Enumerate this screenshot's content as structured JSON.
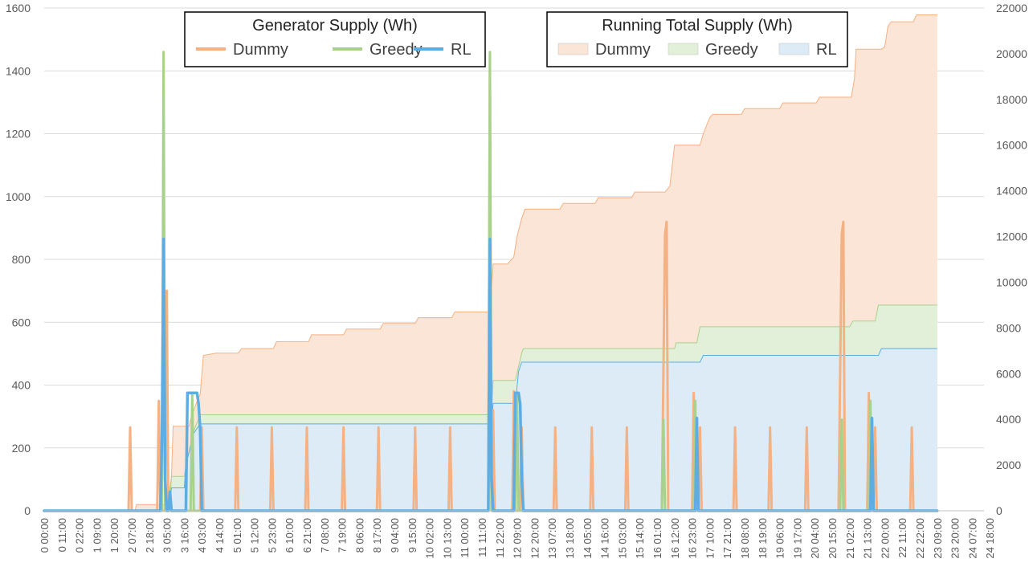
{
  "chart_data": {
    "type": "line",
    "x_tick_labels": [
      "0 00:00",
      "0 11:00",
      "0 22:00",
      "1 09:00",
      "1 20:00",
      "2 07:00",
      "2 18:00",
      "3 05:00",
      "3 16:00",
      "4 03:00",
      "4 14:00",
      "5 01:00",
      "5 12:00",
      "5 23:00",
      "6 10:00",
      "6 21:00",
      "7 08:00",
      "7 19:00",
      "8 06:00",
      "8 17:00",
      "9 04:00",
      "9 15:00",
      "10 02:00",
      "10 13:00",
      "11 00:00",
      "11 11:00",
      "11 22:00",
      "12 09:00",
      "12 20:00",
      "13 07:00",
      "13 18:00",
      "14 05:00",
      "14 16:00",
      "15 03:00",
      "15 14:00",
      "16 01:00",
      "16 12:00",
      "16 23:00",
      "17 10:00",
      "17 21:00",
      "18 08:00",
      "18 19:00",
      "19 06:00",
      "19 17:00",
      "20 04:00",
      "20 15:00",
      "21 02:00",
      "21 13:00",
      "22 00:00",
      "22 11:00",
      "22 22:00",
      "23 09:00",
      "23 20:00",
      "24 07:00",
      "24 18:00"
    ],
    "x_range_hours": [
      0,
      597
    ],
    "y_left": {
      "ticks": [
        0,
        200,
        400,
        600,
        800,
        1000,
        1200,
        1400,
        1600
      ],
      "ylim": [
        0,
        1600
      ]
    },
    "y_right": {
      "ticks": [
        0,
        2000,
        4000,
        6000,
        8000,
        10000,
        12000,
        14000,
        16000,
        18000,
        20000,
        22000
      ],
      "ylim": [
        0,
        22000
      ]
    },
    "grid": true,
    "legends": [
      {
        "title": "Generator Supply (Wh)",
        "placement": "top-left",
        "entries": [
          {
            "name": "Dummy",
            "color": "#f4b183",
            "marker": "line"
          },
          {
            "name": "Greedy",
            "color": "#a9d18e",
            "marker": "line"
          },
          {
            "name": "RL",
            "color": "#5dade2",
            "marker": "line"
          }
        ]
      },
      {
        "title": "Running Total Supply (Wh)",
        "placement": "top-right",
        "entries": [
          {
            "name": "Dummy",
            "color": "#fbe5d6",
            "marker": "area"
          },
          {
            "name": "Greedy",
            "color": "#e2f0d9",
            "marker": "area"
          },
          {
            "name": "RL",
            "color": "#ddebf7",
            "marker": "area"
          }
        ]
      }
    ],
    "area_series": [
      {
        "name": "Dummy",
        "axis": "right",
        "fill": "#fbe5d6",
        "stroke": "#f4b183",
        "points": [
          [
            0,
            0
          ],
          [
            55,
            0
          ],
          [
            57,
            0
          ],
          [
            58,
            270
          ],
          [
            77,
            270
          ],
          [
            78,
            290
          ],
          [
            79,
            1000
          ],
          [
            80,
            1500
          ],
          [
            81,
            3700
          ],
          [
            91,
            3700
          ],
          [
            92,
            4000
          ],
          [
            96,
            4800
          ],
          [
            98,
            5100
          ],
          [
            100,
            6800
          ],
          [
            108,
            6900
          ],
          [
            122,
            6900
          ],
          [
            124,
            7100
          ],
          [
            144,
            7100
          ],
          [
            146,
            7400
          ],
          [
            166,
            7400
          ],
          [
            168,
            7700
          ],
          [
            188,
            7700
          ],
          [
            190,
            7950
          ],
          [
            211,
            7950
          ],
          [
            213,
            8200
          ],
          [
            233,
            8200
          ],
          [
            235,
            8450
          ],
          [
            256,
            8450
          ],
          [
            258,
            8700
          ],
          [
            278,
            8700
          ],
          [
            280,
            8700
          ],
          [
            282,
            10800
          ],
          [
            291,
            10800
          ],
          [
            295,
            11100
          ],
          [
            297,
            12000
          ],
          [
            300,
            12800
          ],
          [
            302,
            13200
          ],
          [
            306,
            13200
          ],
          [
            324,
            13200
          ],
          [
            326,
            13450
          ],
          [
            346,
            13450
          ],
          [
            348,
            13700
          ],
          [
            369,
            13700
          ],
          [
            371,
            13950
          ],
          [
            390,
            13950
          ],
          [
            393,
            14200
          ],
          [
            396,
            16000
          ],
          [
            412,
            16000
          ],
          [
            414,
            16500
          ],
          [
            418,
            17200
          ],
          [
            420,
            17350
          ],
          [
            438,
            17350
          ],
          [
            440,
            17600
          ],
          [
            462,
            17600
          ],
          [
            464,
            17850
          ],
          [
            485,
            17850
          ],
          [
            487,
            18100
          ],
          [
            507,
            18100
          ],
          [
            509,
            18900
          ],
          [
            510,
            20200
          ],
          [
            526,
            20200
          ],
          [
            528,
            20300
          ],
          [
            530,
            21200
          ],
          [
            532,
            21400
          ],
          [
            546,
            21400
          ],
          [
            548,
            21700
          ],
          [
            560,
            21700
          ],
          [
            561,
            21700
          ]
        ]
      },
      {
        "name": "Greedy",
        "axis": "right",
        "fill": "#e2f0d9",
        "stroke": "#a9d18e",
        "points": [
          [
            0,
            0
          ],
          [
            78,
            0
          ],
          [
            79,
            500
          ],
          [
            80,
            1500
          ],
          [
            88,
            1500
          ],
          [
            89,
            2000
          ],
          [
            94,
            3500
          ],
          [
            98,
            4200
          ],
          [
            281,
            4200
          ],
          [
            282,
            5700
          ],
          [
            296,
            5700
          ],
          [
            300,
            6900
          ],
          [
            301,
            7100
          ],
          [
            396,
            7100
          ],
          [
            397,
            7350
          ],
          [
            410,
            7350
          ],
          [
            412,
            8050
          ],
          [
            506,
            8050
          ],
          [
            508,
            8300
          ],
          [
            522,
            8300
          ],
          [
            524,
            9000
          ],
          [
            560,
            9000
          ],
          [
            561,
            9000
          ]
        ]
      },
      {
        "name": "RL",
        "axis": "right",
        "fill": "#ddebf7",
        "stroke": "#5dade2",
        "points": [
          [
            0,
            0
          ],
          [
            78,
            0
          ],
          [
            79,
            500
          ],
          [
            80,
            1000
          ],
          [
            88,
            1000
          ],
          [
            89,
            2000
          ],
          [
            94,
            3400
          ],
          [
            98,
            3800
          ],
          [
            281,
            3800
          ],
          [
            282,
            4700
          ],
          [
            296,
            4700
          ],
          [
            298,
            6100
          ],
          [
            300,
            6500
          ],
          [
            412,
            6500
          ],
          [
            414,
            6800
          ],
          [
            524,
            6800
          ],
          [
            526,
            7100
          ],
          [
            560,
            7100
          ],
          [
            561,
            7100
          ]
        ]
      }
    ],
    "line_series": [
      {
        "name": "Dummy",
        "axis": "left",
        "color": "#f4b183",
        "stroke_width": 3,
        "points": [
          [
            0,
            0
          ],
          [
            53,
            0
          ],
          [
            54,
            265
          ],
          [
            55,
            0
          ],
          [
            71,
            0
          ],
          [
            72,
            350
          ],
          [
            73,
            0
          ],
          [
            76,
            0
          ],
          [
            77,
            700
          ],
          [
            78,
            0
          ],
          [
            98,
            0
          ],
          [
            99,
            265
          ],
          [
            100,
            0
          ],
          [
            120,
            0
          ],
          [
            121,
            265
          ],
          [
            122,
            0
          ],
          [
            142,
            0
          ],
          [
            143,
            265
          ],
          [
            144,
            0
          ],
          [
            164,
            0
          ],
          [
            165,
            265
          ],
          [
            166,
            0
          ],
          [
            187,
            0
          ],
          [
            188,
            265
          ],
          [
            189,
            0
          ],
          [
            209,
            0
          ],
          [
            210,
            265
          ],
          [
            211,
            0
          ],
          [
            232,
            0
          ],
          [
            233,
            265
          ],
          [
            234,
            0
          ],
          [
            254,
            0
          ],
          [
            255,
            265
          ],
          [
            256,
            0
          ],
          [
            279,
            0
          ],
          [
            280,
            1450
          ],
          [
            281,
            0
          ],
          [
            282,
            320
          ],
          [
            283,
            0
          ],
          [
            294,
            0
          ],
          [
            295,
            380
          ],
          [
            296,
            0
          ],
          [
            299,
            0
          ],
          [
            300,
            265
          ],
          [
            301,
            0
          ],
          [
            320,
            0
          ],
          [
            321,
            265
          ],
          [
            322,
            0
          ],
          [
            343,
            0
          ],
          [
            344,
            265
          ],
          [
            345,
            0
          ],
          [
            365,
            0
          ],
          [
            366,
            265
          ],
          [
            367,
            0
          ],
          [
            388,
            0
          ],
          [
            390,
            880
          ],
          [
            391,
            920
          ],
          [
            392,
            0
          ],
          [
            407,
            0
          ],
          [
            408,
            375
          ],
          [
            409,
            0
          ],
          [
            411,
            0
          ],
          [
            412,
            265
          ],
          [
            413,
            0
          ],
          [
            433,
            0
          ],
          [
            434,
            265
          ],
          [
            435,
            0
          ],
          [
            455,
            0
          ],
          [
            456,
            265
          ],
          [
            457,
            0
          ],
          [
            478,
            0
          ],
          [
            479,
            265
          ],
          [
            480,
            0
          ],
          [
            499,
            0
          ],
          [
            501,
            880
          ],
          [
            502,
            920
          ],
          [
            503,
            0
          ],
          [
            517,
            0
          ],
          [
            518,
            375
          ],
          [
            519,
            0
          ],
          [
            521,
            0
          ],
          [
            522,
            265
          ],
          [
            523,
            0
          ],
          [
            544,
            0
          ],
          [
            545,
            265
          ],
          [
            546,
            0
          ],
          [
            561,
            0
          ]
        ]
      },
      {
        "name": "Greedy",
        "axis": "left",
        "color": "#a9d18e",
        "stroke_width": 3,
        "points": [
          [
            0,
            0
          ],
          [
            74,
            0
          ],
          [
            75,
            1460
          ],
          [
            76,
            0
          ],
          [
            92,
            0
          ],
          [
            93,
            370
          ],
          [
            94,
            0
          ],
          [
            279,
            0
          ],
          [
            280,
            1460
          ],
          [
            281,
            0
          ],
          [
            296,
            0
          ],
          [
            297,
            370
          ],
          [
            298,
            0
          ],
          [
            388,
            0
          ],
          [
            389,
            290
          ],
          [
            390,
            0
          ],
          [
            408,
            0
          ],
          [
            409,
            350
          ],
          [
            410,
            0
          ],
          [
            500,
            0
          ],
          [
            501,
            290
          ],
          [
            502,
            0
          ],
          [
            518,
            0
          ],
          [
            519,
            350
          ],
          [
            520,
            0
          ],
          [
            561,
            0
          ]
        ]
      },
      {
        "name": "RL",
        "axis": "left",
        "color": "#5dade2",
        "stroke_width": 3.5,
        "points": [
          [
            0,
            0
          ],
          [
            73,
            0
          ],
          [
            74,
            250
          ],
          [
            75,
            865
          ],
          [
            76,
            100
          ],
          [
            77,
            0
          ],
          [
            78,
            0
          ],
          [
            79,
            60
          ],
          [
            80,
            0
          ],
          [
            89,
            0
          ],
          [
            90,
            375
          ],
          [
            96,
            375
          ],
          [
            97,
            340
          ],
          [
            98,
            260
          ],
          [
            99,
            0
          ],
          [
            279,
            0
          ],
          [
            280,
            865
          ],
          [
            281,
            100
          ],
          [
            282,
            0
          ],
          [
            295,
            0
          ],
          [
            296,
            375
          ],
          [
            298,
            375
          ],
          [
            299,
            340
          ],
          [
            300,
            100
          ],
          [
            301,
            0
          ],
          [
            409,
            0
          ],
          [
            410,
            295
          ],
          [
            411,
            0
          ],
          [
            519,
            0
          ],
          [
            520,
            295
          ],
          [
            521,
            0
          ],
          [
            561,
            0
          ]
        ]
      }
    ]
  }
}
